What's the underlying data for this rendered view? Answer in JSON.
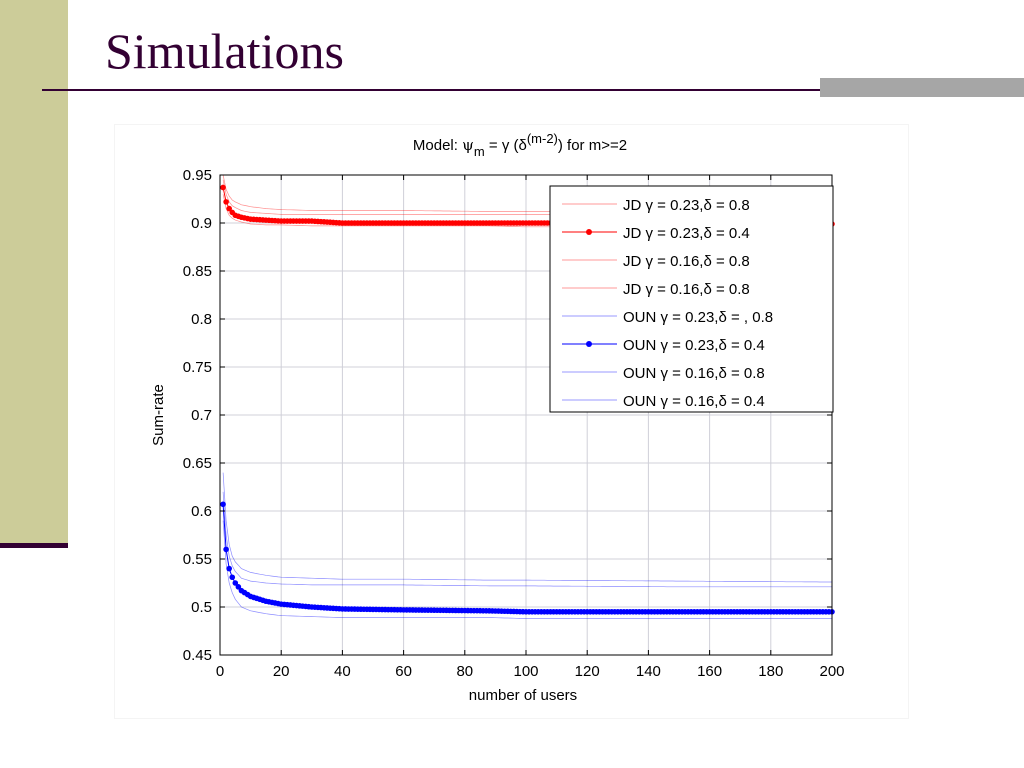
{
  "slide": {
    "title": "Simulations"
  },
  "colors": {
    "sidebar": "#cccc99",
    "accent": "#330033",
    "red": "#ff0000",
    "blue": "#0000ff"
  },
  "chart_data": {
    "type": "line",
    "title_prefix": "Model: ",
    "title_psi": "ψ",
    "title_sub": "m",
    "title_mid": " = γ (δ",
    "title_sup": "(m-2)",
    "title_suffix": ") for m>=2",
    "xlabel": "number of users",
    "ylabel": "Sum-rate",
    "xlim": [
      0,
      200
    ],
    "ylim": [
      0.45,
      0.95
    ],
    "xticks": [
      "0",
      "20",
      "40",
      "60",
      "80",
      "100",
      "120",
      "140",
      "160",
      "180",
      "200"
    ],
    "yticks": [
      "0.45",
      "0.5",
      "0.55",
      "0.6",
      "0.65",
      "0.7",
      "0.75",
      "0.8",
      "0.85",
      "0.9",
      "0.95"
    ],
    "grid": true,
    "legend_position": "top-right",
    "x": [
      1,
      2,
      3,
      4,
      5,
      7,
      10,
      15,
      20,
      30,
      40,
      60,
      88,
      100,
      150,
      200
    ],
    "series": [
      {
        "name": "JD γ = 0.23,δ = 0.8",
        "color": "#ff0000",
        "markers": false,
        "values": [
          0.95,
          0.935,
          0.928,
          0.924,
          0.922,
          0.919,
          0.917,
          0.915,
          0.914,
          0.913,
          0.913,
          0.913,
          0.912,
          0.912,
          0.912,
          0.912
        ]
      },
      {
        "name": "JD γ = 0.23,δ = 0.4",
        "color": "#ff0000",
        "markers": true,
        "values": [
          0.937,
          0.922,
          0.915,
          0.911,
          0.908,
          0.906,
          0.904,
          0.903,
          0.902,
          0.902,
          0.9,
          0.9,
          0.9,
          0.9,
          0.9,
          0.899
        ]
      },
      {
        "name": "JD γ = 0.16,δ = 0.8",
        "color": "#ff0000",
        "markers": false,
        "values": [
          0.945,
          0.93,
          0.922,
          0.918,
          0.916,
          0.913,
          0.911,
          0.91,
          0.909,
          0.909,
          0.909,
          0.909,
          0.909,
          0.909,
          0.909,
          0.909
        ]
      },
      {
        "name": "JD γ = 0.16,δ = 0.8",
        "color": "#ff0000",
        "markers": false,
        "values": [
          0.93,
          0.915,
          0.908,
          0.905,
          0.903,
          0.901,
          0.899,
          0.898,
          0.898,
          0.897,
          0.897,
          0.897,
          0.897,
          0.896,
          0.896,
          0.896
        ]
      },
      {
        "name": "OUN γ = 0.23,δ = , 0.8",
        "color": "#0000ff",
        "markers": false,
        "values": [
          0.64,
          0.59,
          0.565,
          0.553,
          0.547,
          0.54,
          0.536,
          0.533,
          0.531,
          0.53,
          0.529,
          0.529,
          0.528,
          0.528,
          0.527,
          0.526
        ]
      },
      {
        "name": "OUN γ = 0.23,δ = 0.4",
        "color": "#0000ff",
        "markers": true,
        "values": [
          0.607,
          0.56,
          0.54,
          0.531,
          0.525,
          0.517,
          0.511,
          0.506,
          0.503,
          0.5,
          0.498,
          0.497,
          0.496,
          0.495,
          0.495,
          0.495
        ]
      },
      {
        "name": "OUN γ = 0.16,δ = 0.8",
        "color": "#0000ff",
        "markers": false,
        "values": [
          0.62,
          0.575,
          0.553,
          0.543,
          0.537,
          0.53,
          0.527,
          0.525,
          0.524,
          0.523,
          0.523,
          0.523,
          0.522,
          0.522,
          0.521,
          0.521
        ]
      },
      {
        "name": "OUN γ = 0.16,δ = 0.4",
        "color": "#0000ff",
        "markers": false,
        "values": [
          0.59,
          0.545,
          0.525,
          0.515,
          0.508,
          0.5,
          0.496,
          0.493,
          0.491,
          0.49,
          0.489,
          0.489,
          0.489,
          0.488,
          0.488,
          0.488
        ]
      }
    ]
  }
}
